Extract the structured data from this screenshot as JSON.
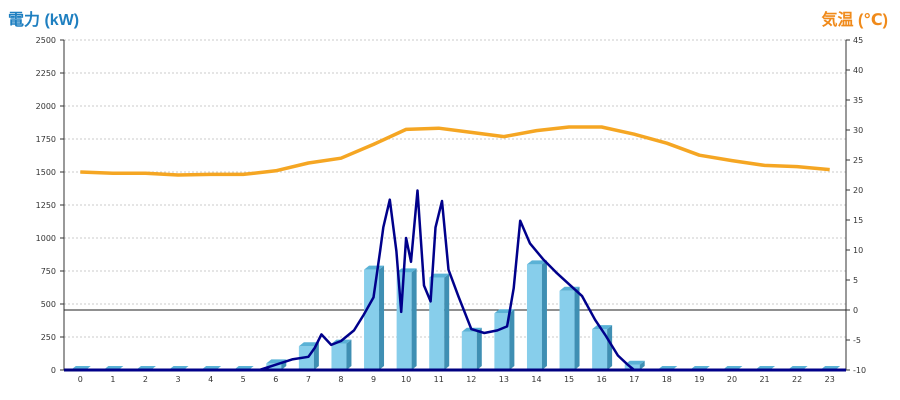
{
  "chart_data": {
    "type": "bar+line",
    "title": "",
    "left_axis": {
      "title": "電力 (kW)",
      "ylim": [
        0,
        2500
      ],
      "ticks": [
        0,
        250,
        500,
        750,
        1000,
        1250,
        1500,
        1750,
        2000,
        2250,
        2500
      ]
    },
    "right_axis": {
      "title": "気温 (℃)",
      "ylim": [
        -10,
        45
      ],
      "ticks": [
        -10,
        -5,
        0,
        5,
        10,
        15,
        20,
        25,
        30,
        35,
        40,
        45
      ]
    },
    "categories": [
      "0",
      "1",
      "2",
      "3",
      "4",
      "5",
      "6",
      "7",
      "8",
      "9",
      "10",
      "11",
      "12",
      "13",
      "14",
      "15",
      "16",
      "17",
      "18",
      "19",
      "20",
      "21",
      "22",
      "23"
    ],
    "grid": true,
    "series": [
      {
        "kind": "bar",
        "axis": "left",
        "color": "#87ceeb",
        "values": [
          0,
          0,
          0,
          0,
          0,
          0,
          50,
          180,
          200,
          760,
          740,
          700,
          290,
          430,
          800,
          600,
          310,
          40,
          0,
          0,
          0,
          0,
          0,
          0
        ]
      },
      {
        "kind": "line",
        "axis": "right",
        "color": "#f5a623",
        "x": [
          0,
          1,
          2,
          3,
          4,
          5,
          6,
          7,
          8,
          9,
          10,
          11,
          12,
          13,
          14,
          15,
          16,
          17,
          18,
          19,
          20,
          21,
          22,
          23
        ],
        "values": [
          23,
          22.8,
          22.8,
          22.5,
          22.6,
          22.6,
          23.2,
          24.5,
          25.3,
          27.6,
          30.1,
          30.3,
          29.6,
          28.9,
          29.9,
          30.5,
          30.5,
          29.3,
          27.8,
          25.8,
          24.9,
          24.1,
          23.9,
          23.4
        ]
      },
      {
        "kind": "line",
        "axis": "left",
        "color": "#00008b",
        "x": [
          0,
          5.5,
          6,
          6.5,
          7.0,
          7.2,
          7.4,
          7.7,
          8.0,
          8.4,
          8.7,
          9.0,
          9.2,
          9.3,
          9.5,
          9.7,
          9.85,
          10.0,
          10.15,
          10.35,
          10.55,
          10.75,
          10.9,
          11.1,
          11.3,
          11.6,
          12.0,
          12.4,
          12.8,
          13.1,
          13.3,
          13.5,
          13.8,
          14.2,
          14.6,
          15.0,
          15.4,
          15.8,
          16.1,
          16.5,
          16.8,
          17.0,
          17.5,
          23.5
        ],
        "values": [
          0,
          0,
          40,
          80,
          100,
          170,
          270,
          190,
          220,
          300,
          420,
          550,
          900,
          1080,
          1290,
          900,
          440,
          1000,
          820,
          1360,
          640,
          520,
          1080,
          1280,
          760,
          560,
          310,
          280,
          300,
          330,
          620,
          1130,
          960,
          840,
          740,
          650,
          560,
          380,
          270,
          110,
          40,
          0,
          0,
          0
        ]
      }
    ]
  }
}
